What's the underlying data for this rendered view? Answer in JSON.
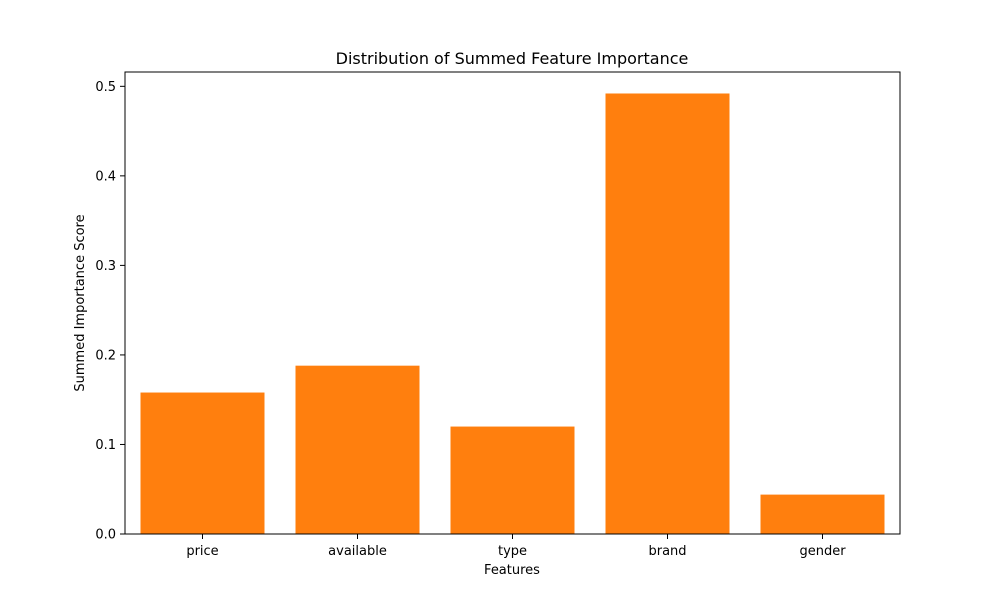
{
  "chart_data": {
    "type": "bar",
    "title": "Distribution of Summed Feature Importance",
    "xlabel": "Features",
    "ylabel": "Summed Importance Score",
    "categories": [
      "price",
      "available",
      "type",
      "brand",
      "gender"
    ],
    "values": [
      0.158,
      0.188,
      0.12,
      0.492,
      0.044
    ],
    "ylim": [
      0,
      0.516
    ],
    "yticks": [
      0.0,
      0.1,
      0.2,
      0.3,
      0.4,
      0.5
    ],
    "ytick_labels": [
      "0.0",
      "0.1",
      "0.2",
      "0.3",
      "0.4",
      "0.5"
    ],
    "bar_color": "#ff7f0e",
    "grid": false,
    "legend": "none"
  }
}
